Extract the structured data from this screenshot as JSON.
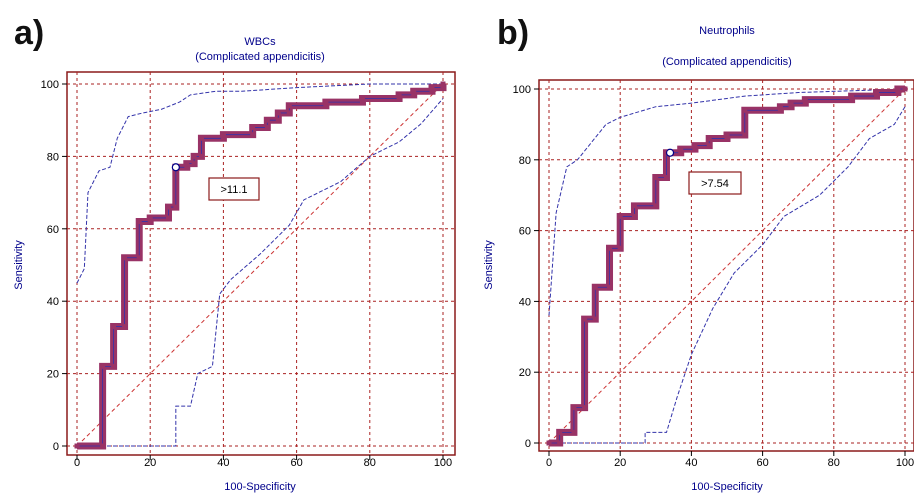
{
  "chart_data": [
    {
      "type": "line",
      "panel": "a)",
      "title": "WBCs",
      "subtitle": "(Complicated appendicitis)",
      "xlabel": "100-Specificity",
      "ylabel": "Sensitivity",
      "xlim": [
        0,
        100
      ],
      "ylim": [
        0,
        100
      ],
      "xticks": [
        "0",
        "20",
        "40",
        "60",
        "80",
        "100"
      ],
      "yticks": [
        "0",
        "20",
        "40",
        "60",
        "80",
        "100"
      ],
      "grid": true,
      "cutoff_label": ">11.1",
      "cutoff_point": [
        27,
        77
      ],
      "colors": {
        "roc": "#993366",
        "ci": "#3333aa",
        "diagonal": "#cc3333",
        "grid": "#aa2222",
        "frame": "#8b1a1a",
        "marker": "#000088"
      },
      "roc": [
        [
          0,
          0
        ],
        [
          7,
          0
        ],
        [
          7,
          22
        ],
        [
          10,
          22
        ],
        [
          10,
          33
        ],
        [
          13,
          33
        ],
        [
          13,
          52
        ],
        [
          17,
          52
        ],
        [
          17,
          62
        ],
        [
          20,
          62
        ],
        [
          20,
          63
        ],
        [
          25,
          63
        ],
        [
          25,
          66
        ],
        [
          27,
          66
        ],
        [
          27,
          77
        ],
        [
          30,
          77
        ],
        [
          30,
          78
        ],
        [
          32,
          78
        ],
        [
          32,
          80
        ],
        [
          34,
          80
        ],
        [
          34,
          85
        ],
        [
          40,
          85
        ],
        [
          40,
          86
        ],
        [
          48,
          86
        ],
        [
          48,
          88
        ],
        [
          52,
          88
        ],
        [
          52,
          90
        ],
        [
          55,
          90
        ],
        [
          55,
          92
        ],
        [
          58,
          92
        ],
        [
          58,
          94
        ],
        [
          68,
          94
        ],
        [
          68,
          95
        ],
        [
          78,
          95
        ],
        [
          78,
          96
        ],
        [
          88,
          96
        ],
        [
          88,
          97
        ],
        [
          92,
          97
        ],
        [
          92,
          98
        ],
        [
          97,
          98
        ],
        [
          97,
          99
        ],
        [
          100,
          99
        ],
        [
          100,
          100
        ]
      ],
      "ci_upper": [
        [
          0,
          45
        ],
        [
          2,
          49
        ],
        [
          3,
          70
        ],
        [
          6,
          76
        ],
        [
          9,
          77
        ],
        [
          11,
          85
        ],
        [
          14,
          91
        ],
        [
          18,
          92
        ],
        [
          23,
          93
        ],
        [
          28,
          95
        ],
        [
          31,
          97
        ],
        [
          38,
          98
        ],
        [
          45,
          98
        ],
        [
          60,
          99
        ],
        [
          80,
          100
        ],
        [
          100,
          100
        ]
      ],
      "ci_lower": [
        [
          0,
          0
        ],
        [
          27,
          0
        ],
        [
          27,
          11
        ],
        [
          31,
          11
        ],
        [
          33,
          20
        ],
        [
          37,
          22
        ],
        [
          39,
          42
        ],
        [
          42,
          46
        ],
        [
          50,
          53
        ],
        [
          58,
          61
        ],
        [
          62,
          68
        ],
        [
          72,
          73
        ],
        [
          80,
          80
        ],
        [
          88,
          84
        ],
        [
          94,
          89
        ],
        [
          100,
          96
        ]
      ]
    },
    {
      "type": "line",
      "panel": "b)",
      "title": "Neutrophils",
      "subtitle": "(Complicated appendicitis)",
      "xlabel": "100-Specificity",
      "ylabel": "Sensitivity",
      "xlim": [
        0,
        100
      ],
      "ylim": [
        0,
        100
      ],
      "xticks": [
        "0",
        "20",
        "40",
        "60",
        "80",
        "100"
      ],
      "yticks": [
        "0",
        "20",
        "40",
        "60",
        "80",
        "100"
      ],
      "grid": true,
      "cutoff_label": ">7.54",
      "cutoff_point": [
        34,
        82
      ],
      "colors": {
        "roc": "#993366",
        "ci": "#3333aa",
        "diagonal": "#cc3333",
        "grid": "#aa2222",
        "frame": "#8b1a1a",
        "marker": "#000088"
      },
      "roc": [
        [
          0,
          0
        ],
        [
          3,
          0
        ],
        [
          3,
          3
        ],
        [
          7,
          3
        ],
        [
          7,
          10
        ],
        [
          10,
          10
        ],
        [
          10,
          35
        ],
        [
          13,
          35
        ],
        [
          13,
          44
        ],
        [
          17,
          44
        ],
        [
          17,
          55
        ],
        [
          20,
          55
        ],
        [
          20,
          64
        ],
        [
          24,
          64
        ],
        [
          24,
          67
        ],
        [
          30,
          67
        ],
        [
          30,
          75
        ],
        [
          33,
          75
        ],
        [
          33,
          82
        ],
        [
          37,
          82
        ],
        [
          37,
          83
        ],
        [
          41,
          83
        ],
        [
          41,
          84
        ],
        [
          45,
          84
        ],
        [
          45,
          86
        ],
        [
          50,
          86
        ],
        [
          50,
          87
        ],
        [
          55,
          87
        ],
        [
          55,
          94
        ],
        [
          65,
          94
        ],
        [
          65,
          95
        ],
        [
          68,
          95
        ],
        [
          68,
          96
        ],
        [
          72,
          96
        ],
        [
          72,
          97
        ],
        [
          85,
          97
        ],
        [
          85,
          98
        ],
        [
          92,
          98
        ],
        [
          92,
          99
        ],
        [
          98,
          99
        ],
        [
          98,
          100
        ],
        [
          100,
          100
        ]
      ],
      "ci_upper": [
        [
          0,
          36
        ],
        [
          2,
          65
        ],
        [
          5,
          78
        ],
        [
          8,
          80
        ],
        [
          12,
          85
        ],
        [
          16,
          90
        ],
        [
          20,
          92
        ],
        [
          30,
          95
        ],
        [
          40,
          96
        ],
        [
          55,
          98
        ],
        [
          70,
          99
        ],
        [
          100,
          100
        ]
      ],
      "ci_lower": [
        [
          0,
          0
        ],
        [
          27,
          0
        ],
        [
          27,
          3
        ],
        [
          33,
          3
        ],
        [
          36,
          13
        ],
        [
          40,
          25
        ],
        [
          46,
          38
        ],
        [
          52,
          48
        ],
        [
          60,
          56
        ],
        [
          66,
          64
        ],
        [
          76,
          70
        ],
        [
          84,
          78
        ],
        [
          90,
          86
        ],
        [
          97,
          90
        ],
        [
          100,
          95
        ]
      ]
    }
  ]
}
